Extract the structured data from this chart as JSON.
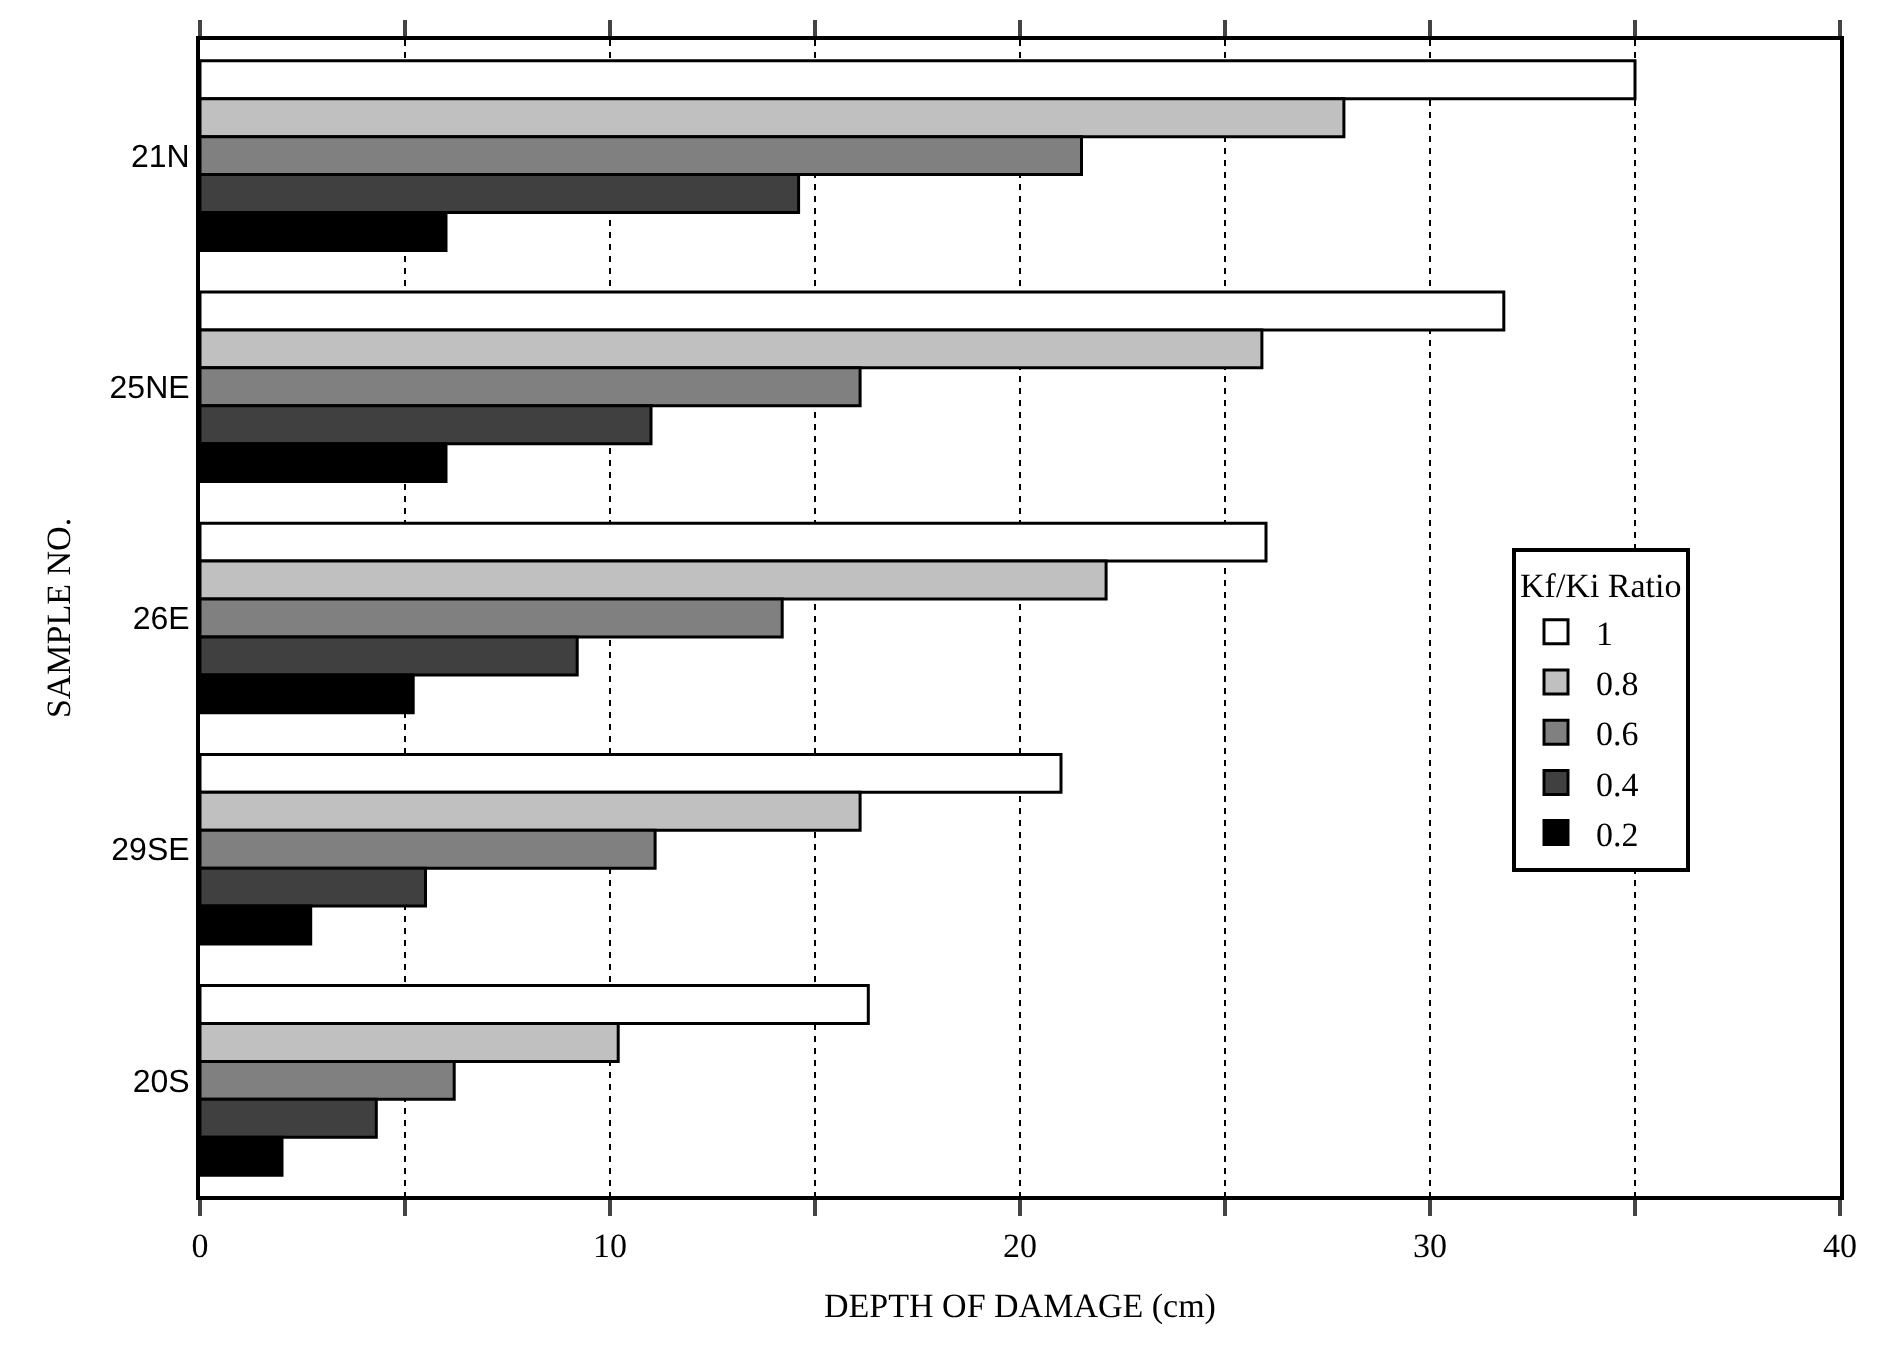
{
  "chart_data": {
    "type": "bar",
    "orientation": "horizontal",
    "xlabel": "DEPTH OF DAMAGE (cm)",
    "ylabel": "SAMPLE NO.",
    "legend_title": "Kf/Ki Ratio",
    "categories": [
      "21N",
      "25NE",
      "26E",
      "29SE",
      "20S"
    ],
    "series": [
      {
        "name": "1",
        "color": "#ffffff",
        "values": [
          35.0,
          31.8,
          26.0,
          21.0,
          16.3
        ]
      },
      {
        "name": "0.8",
        "color": "#c0c0c0",
        "values": [
          27.9,
          25.9,
          22.1,
          16.1,
          10.2
        ]
      },
      {
        "name": "0.6",
        "color": "#808080",
        "values": [
          21.5,
          16.1,
          14.2,
          11.1,
          6.2
        ]
      },
      {
        "name": "0.4",
        "color": "#404040",
        "values": [
          14.6,
          11.0,
          9.2,
          5.5,
          4.3
        ]
      },
      {
        "name": "0.2",
        "color": "#000000",
        "values": [
          6.0,
          6.0,
          5.2,
          2.7,
          2.0
        ]
      }
    ],
    "xlim": [
      0,
      40
    ],
    "xticks": [
      0,
      {
        "value": 5,
        "label": null
      },
      10,
      {
        "value": 15,
        "label": null
      },
      20,
      {
        "value": 25,
        "label": null
      },
      30,
      {
        "value": 35,
        "label": null
      },
      40
    ],
    "grid": "x",
    "legend": "right"
  }
}
